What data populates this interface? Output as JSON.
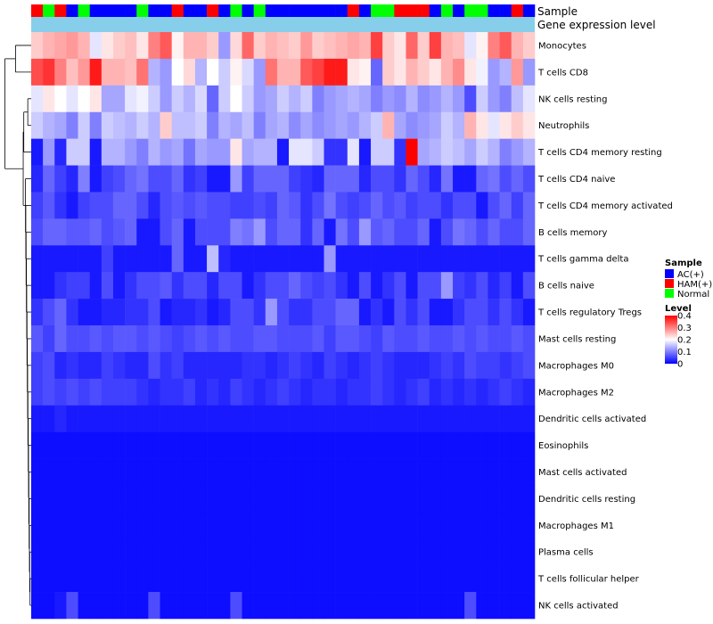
{
  "chart_data": {
    "type": "heatmap",
    "title": "",
    "annotation_labels": {
      "sample": "Sample",
      "gene_expression": "Gene expression level"
    },
    "sample_groups": [
      "HAM(+)",
      "Normal",
      "HAM(+)",
      "AC(+)",
      "Normal",
      "AC(+)",
      "AC(+)",
      "AC(+)",
      "AC(+)",
      "Normal",
      "AC(+)",
      "AC(+)",
      "HAM(+)",
      "AC(+)",
      "AC(+)",
      "HAM(+)",
      "AC(+)",
      "Normal",
      "AC(+)",
      "Normal",
      "AC(+)",
      "AC(+)",
      "AC(+)",
      "AC(+)",
      "AC(+)",
      "AC(+)",
      "AC(+)",
      "HAM(+)",
      "AC(+)",
      "Normal",
      "Normal",
      "HAM(+)",
      "HAM(+)",
      "HAM(+)",
      "AC(+)",
      "Normal",
      "AC(+)",
      "Normal",
      "Normal",
      "AC(+)",
      "AC(+)",
      "HAM(+)",
      "AC(+)"
    ],
    "rows": [
      "Monocytes",
      "T cells CD8",
      "NK cells resting",
      "Neutrophils",
      "T cells CD4 memory resting",
      "T cells CD4 naive",
      "T cells CD4 memory activated",
      "B cells memory",
      "T cells gamma delta",
      "B cells naive",
      "T cells regulatory  Tregs",
      "Mast cells resting",
      "Macrophages M0",
      "Macrophages M2",
      "Dendritic cells activated",
      "Eosinophils",
      "Mast cells activated",
      "Dendritic cells resting",
      "Macrophages M1",
      "Plasma cells",
      "T cells follicular helper",
      "NK cells activated"
    ],
    "values": [
      [
        0.24,
        0.26,
        0.27,
        0.28,
        0.26,
        0.18,
        0.22,
        0.24,
        0.25,
        0.22,
        0.3,
        0.33,
        0.21,
        0.26,
        0.26,
        0.24,
        0.12,
        0.23,
        0.32,
        0.24,
        0.26,
        0.25,
        0.24,
        0.28,
        0.24,
        0.25,
        0.26,
        0.27,
        0.26,
        0.35,
        0.24,
        0.22,
        0.32,
        0.24,
        0.35,
        0.26,
        0.25,
        0.18,
        0.21,
        0.3,
        0.33,
        0.26,
        0.24
      ],
      [
        0.34,
        0.36,
        0.3,
        0.25,
        0.28,
        0.38,
        0.26,
        0.26,
        0.25,
        0.31,
        0.14,
        0.12,
        0.2,
        0.23,
        0.14,
        0.2,
        0.16,
        0.21,
        0.17,
        0.12,
        0.31,
        0.26,
        0.26,
        0.33,
        0.35,
        0.38,
        0.38,
        0.22,
        0.21,
        0.08,
        0.24,
        0.22,
        0.26,
        0.24,
        0.22,
        0.26,
        0.29,
        0.22,
        0.19,
        0.12,
        0.14,
        0.28,
        0.12
      ],
      [
        0.18,
        0.22,
        0.2,
        0.18,
        0.2,
        0.22,
        0.13,
        0.13,
        0.18,
        0.19,
        0.16,
        0.12,
        0.16,
        0.14,
        0.17,
        0.08,
        0.16,
        0.2,
        0.16,
        0.12,
        0.13,
        0.16,
        0.14,
        0.16,
        0.1,
        0.12,
        0.13,
        0.14,
        0.13,
        0.1,
        0.12,
        0.11,
        0.14,
        0.11,
        0.12,
        0.14,
        0.12,
        0.06,
        0.16,
        0.12,
        0.1,
        0.15,
        0.18
      ],
      [
        0.16,
        0.14,
        0.13,
        0.1,
        0.16,
        0.1,
        0.16,
        0.15,
        0.14,
        0.16,
        0.14,
        0.24,
        0.15,
        0.15,
        0.16,
        0.1,
        0.14,
        0.13,
        0.15,
        0.1,
        0.13,
        0.14,
        0.11,
        0.13,
        0.11,
        0.12,
        0.13,
        0.12,
        0.14,
        0.16,
        0.26,
        0.13,
        0.11,
        0.12,
        0.13,
        0.16,
        0.14,
        0.26,
        0.22,
        0.18,
        0.22,
        0.24,
        0.22
      ],
      [
        0.02,
        0.12,
        0.03,
        0.16,
        0.16,
        0.02,
        0.14,
        0.14,
        0.12,
        0.1,
        0.14,
        0.12,
        0.13,
        0.09,
        0.13,
        0.12,
        0.12,
        0.22,
        0.13,
        0.14,
        0.14,
        0.02,
        0.18,
        0.18,
        0.16,
        0.04,
        0.04,
        0.18,
        0.02,
        0.16,
        0.16,
        0.04,
        0.4,
        0.13,
        0.14,
        0.16,
        0.15,
        0.13,
        0.16,
        0.14,
        0.1,
        0.12,
        0.14
      ],
      [
        0.03,
        0.08,
        0.05,
        0.03,
        0.1,
        0.02,
        0.05,
        0.06,
        0.08,
        0.09,
        0.06,
        0.06,
        0.08,
        0.04,
        0.05,
        0.02,
        0.02,
        0.12,
        0.05,
        0.08,
        0.08,
        0.08,
        0.05,
        0.04,
        0.03,
        0.08,
        0.08,
        0.08,
        0.03,
        0.06,
        0.06,
        0.04,
        0.08,
        0.06,
        0.03,
        0.09,
        0.02,
        0.02,
        0.08,
        0.09,
        0.06,
        0.08,
        0.06
      ],
      [
        0.05,
        0.07,
        0.04,
        0.02,
        0.05,
        0.06,
        0.06,
        0.08,
        0.08,
        0.06,
        0.03,
        0.06,
        0.07,
        0.06,
        0.07,
        0.06,
        0.06,
        0.05,
        0.05,
        0.06,
        0.05,
        0.08,
        0.07,
        0.04,
        0.06,
        0.09,
        0.06,
        0.05,
        0.06,
        0.08,
        0.06,
        0.07,
        0.05,
        0.06,
        0.06,
        0.04,
        0.06,
        0.06,
        0.02,
        0.06,
        0.08,
        0.05,
        0.08
      ],
      [
        0.06,
        0.08,
        0.08,
        0.07,
        0.07,
        0.08,
        0.06,
        0.07,
        0.08,
        0.02,
        0.02,
        0.06,
        0.08,
        0.02,
        0.06,
        0.06,
        0.06,
        0.1,
        0.09,
        0.12,
        0.06,
        0.08,
        0.08,
        0.04,
        0.08,
        0.02,
        0.09,
        0.06,
        0.12,
        0.07,
        0.08,
        0.06,
        0.06,
        0.08,
        0.02,
        0.06,
        0.09,
        0.08,
        0.06,
        0.08,
        0.06,
        0.06,
        0.08
      ],
      [
        0.02,
        0.02,
        0.02,
        0.02,
        0.02,
        0.02,
        0.05,
        0.02,
        0.02,
        0.02,
        0.02,
        0.02,
        0.08,
        0.02,
        0.02,
        0.15,
        0.03,
        0.02,
        0.02,
        0.02,
        0.02,
        0.02,
        0.02,
        0.02,
        0.02,
        0.12,
        0.02,
        0.02,
        0.02,
        0.02,
        0.02,
        0.02,
        0.02,
        0.02,
        0.02,
        0.02,
        0.02,
        0.02,
        0.02,
        0.02,
        0.02,
        0.02,
        0.02
      ],
      [
        0.02,
        0.02,
        0.04,
        0.05,
        0.05,
        0.02,
        0.06,
        0.02,
        0.04,
        0.06,
        0.06,
        0.07,
        0.04,
        0.06,
        0.06,
        0.03,
        0.06,
        0.06,
        0.02,
        0.04,
        0.06,
        0.06,
        0.08,
        0.06,
        0.05,
        0.06,
        0.04,
        0.02,
        0.06,
        0.02,
        0.04,
        0.06,
        0.02,
        0.06,
        0.06,
        0.12,
        0.05,
        0.04,
        0.06,
        0.03,
        0.05,
        0.02,
        0.06
      ],
      [
        0.04,
        0.06,
        0.08,
        0.04,
        0.02,
        0.02,
        0.03,
        0.03,
        0.04,
        0.04,
        0.06,
        0.02,
        0.03,
        0.03,
        0.04,
        0.02,
        0.03,
        0.06,
        0.06,
        0.04,
        0.12,
        0.06,
        0.04,
        0.04,
        0.06,
        0.06,
        0.08,
        0.08,
        0.02,
        0.04,
        0.02,
        0.06,
        0.04,
        0.06,
        0.02,
        0.02,
        0.04,
        0.06,
        0.06,
        0.04,
        0.06,
        0.04,
        0.02
      ],
      [
        0.07,
        0.05,
        0.08,
        0.06,
        0.06,
        0.07,
        0.06,
        0.07,
        0.07,
        0.06,
        0.07,
        0.06,
        0.05,
        0.06,
        0.07,
        0.06,
        0.07,
        0.06,
        0.06,
        0.07,
        0.07,
        0.06,
        0.06,
        0.06,
        0.07,
        0.05,
        0.07,
        0.07,
        0.06,
        0.05,
        0.07,
        0.06,
        0.06,
        0.07,
        0.06,
        0.06,
        0.07,
        0.06,
        0.07,
        0.06,
        0.06,
        0.07,
        0.06
      ],
      [
        0.05,
        0.06,
        0.03,
        0.04,
        0.03,
        0.03,
        0.05,
        0.04,
        0.03,
        0.03,
        0.06,
        0.04,
        0.05,
        0.03,
        0.03,
        0.03,
        0.03,
        0.03,
        0.04,
        0.04,
        0.03,
        0.04,
        0.05,
        0.04,
        0.03,
        0.05,
        0.04,
        0.03,
        0.04,
        0.05,
        0.04,
        0.03,
        0.03,
        0.03,
        0.04,
        0.05,
        0.04,
        0.06,
        0.05,
        0.05,
        0.04,
        0.05,
        0.06
      ],
      [
        0.05,
        0.06,
        0.05,
        0.06,
        0.05,
        0.06,
        0.05,
        0.05,
        0.05,
        0.04,
        0.03,
        0.04,
        0.04,
        0.05,
        0.03,
        0.04,
        0.03,
        0.05,
        0.04,
        0.03,
        0.04,
        0.05,
        0.04,
        0.03,
        0.04,
        0.04,
        0.03,
        0.04,
        0.04,
        0.05,
        0.04,
        0.03,
        0.04,
        0.05,
        0.03,
        0.04,
        0.03,
        0.04,
        0.03,
        0.04,
        0.05,
        0.04,
        0.03
      ],
      [
        0.02,
        0.02,
        0.03,
        0.02,
        0.02,
        0.02,
        0.02,
        0.02,
        0.02,
        0.02,
        0.02,
        0.02,
        0.02,
        0.02,
        0.02,
        0.02,
        0.02,
        0.02,
        0.02,
        0.02,
        0.02,
        0.02,
        0.02,
        0.02,
        0.02,
        0.02,
        0.02,
        0.02,
        0.02,
        0.02,
        0.02,
        0.02,
        0.02,
        0.02,
        0.02,
        0.02,
        0.02,
        0.02,
        0.02,
        0.02,
        0.02,
        0.02,
        0.02
      ],
      [
        0.01,
        0.01,
        0.01,
        0.01,
        0.01,
        0.01,
        0.01,
        0.01,
        0.01,
        0.01,
        0.01,
        0.01,
        0.01,
        0.01,
        0.01,
        0.01,
        0.01,
        0.01,
        0.01,
        0.01,
        0.01,
        0.01,
        0.01,
        0.01,
        0.01,
        0.01,
        0.01,
        0.01,
        0.01,
        0.01,
        0.01,
        0.01,
        0.01,
        0.01,
        0.01,
        0.01,
        0.01,
        0.01,
        0.01,
        0.01,
        0.01,
        0.01,
        0.01
      ],
      [
        0.01,
        0.01,
        0.01,
        0.01,
        0.01,
        0.01,
        0.01,
        0.01,
        0.01,
        0.01,
        0.01,
        0.01,
        0.01,
        0.01,
        0.01,
        0.01,
        0.01,
        0.01,
        0.01,
        0.01,
        0.01,
        0.01,
        0.01,
        0.01,
        0.01,
        0.01,
        0.01,
        0.01,
        0.01,
        0.01,
        0.01,
        0.01,
        0.01,
        0.01,
        0.01,
        0.01,
        0.01,
        0.01,
        0.01,
        0.01,
        0.01,
        0.01,
        0.01
      ],
      [
        0.01,
        0.01,
        0.01,
        0.01,
        0.01,
        0.01,
        0.01,
        0.01,
        0.01,
        0.01,
        0.01,
        0.01,
        0.01,
        0.01,
        0.01,
        0.01,
        0.01,
        0.01,
        0.01,
        0.01,
        0.01,
        0.01,
        0.01,
        0.01,
        0.01,
        0.01,
        0.01,
        0.01,
        0.01,
        0.01,
        0.01,
        0.01,
        0.01,
        0.01,
        0.01,
        0.01,
        0.01,
        0.01,
        0.01,
        0.01,
        0.01,
        0.01,
        0.01
      ],
      [
        0.01,
        0.01,
        0.01,
        0.01,
        0.01,
        0.01,
        0.01,
        0.01,
        0.01,
        0.01,
        0.01,
        0.01,
        0.01,
        0.01,
        0.01,
        0.01,
        0.01,
        0.01,
        0.01,
        0.01,
        0.01,
        0.01,
        0.01,
        0.01,
        0.01,
        0.01,
        0.01,
        0.01,
        0.01,
        0.01,
        0.01,
        0.01,
        0.01,
        0.01,
        0.01,
        0.01,
        0.01,
        0.01,
        0.01,
        0.01,
        0.01,
        0.01,
        0.01
      ],
      [
        0.01,
        0.01,
        0.01,
        0.01,
        0.01,
        0.01,
        0.01,
        0.01,
        0.01,
        0.01,
        0.01,
        0.01,
        0.01,
        0.01,
        0.01,
        0.01,
        0.01,
        0.01,
        0.01,
        0.01,
        0.01,
        0.01,
        0.01,
        0.01,
        0.01,
        0.01,
        0.01,
        0.01,
        0.01,
        0.01,
        0.01,
        0.01,
        0.01,
        0.01,
        0.01,
        0.01,
        0.01,
        0.01,
        0.01,
        0.01,
        0.01,
        0.01,
        0.01
      ],
      [
        0.01,
        0.01,
        0.01,
        0.01,
        0.01,
        0.01,
        0.01,
        0.01,
        0.01,
        0.01,
        0.01,
        0.01,
        0.01,
        0.01,
        0.01,
        0.01,
        0.01,
        0.01,
        0.01,
        0.01,
        0.01,
        0.01,
        0.01,
        0.01,
        0.01,
        0.01,
        0.01,
        0.01,
        0.01,
        0.01,
        0.01,
        0.01,
        0.01,
        0.01,
        0.01,
        0.01,
        0.01,
        0.01,
        0.01,
        0.01,
        0.01,
        0.01,
        0.01
      ],
      [
        0.01,
        0.01,
        0.02,
        0.06,
        0.01,
        0.01,
        0.01,
        0.01,
        0.01,
        0.01,
        0.06,
        0.01,
        0.01,
        0.01,
        0.01,
        0.01,
        0.01,
        0.06,
        0.01,
        0.01,
        0.01,
        0.01,
        0.01,
        0.01,
        0.01,
        0.01,
        0.01,
        0.01,
        0.01,
        0.01,
        0.01,
        0.01,
        0.01,
        0.01,
        0.01,
        0.01,
        0.01,
        0.06,
        0.01,
        0.01,
        0.01,
        0.01,
        0.01
      ]
    ],
    "color_scale": {
      "low": "#0000ff",
      "mid": "#ffffff",
      "high": "#ff0000",
      "min": 0,
      "mid_value": 0.2,
      "max": 0.4
    },
    "legend": {
      "sample_title": "Sample",
      "sample_entries": [
        {
          "label": "AC(+)",
          "color": "#0000ff"
        },
        {
          "label": "HAM(+)",
          "color": "#ff0000"
        },
        {
          "label": "Normal",
          "color": "#00ff00"
        }
      ],
      "level_title": "Level",
      "level_ticks": [
        "0.4",
        "0.3",
        "0.2",
        "0.1",
        "0"
      ],
      "level_tick_values": [
        0.4,
        0.3,
        0.2,
        0.1,
        0
      ]
    },
    "gene_expression_color": "#87ceeb",
    "dendrogram": "row dendrogram on left",
    "legend_position": "right"
  }
}
